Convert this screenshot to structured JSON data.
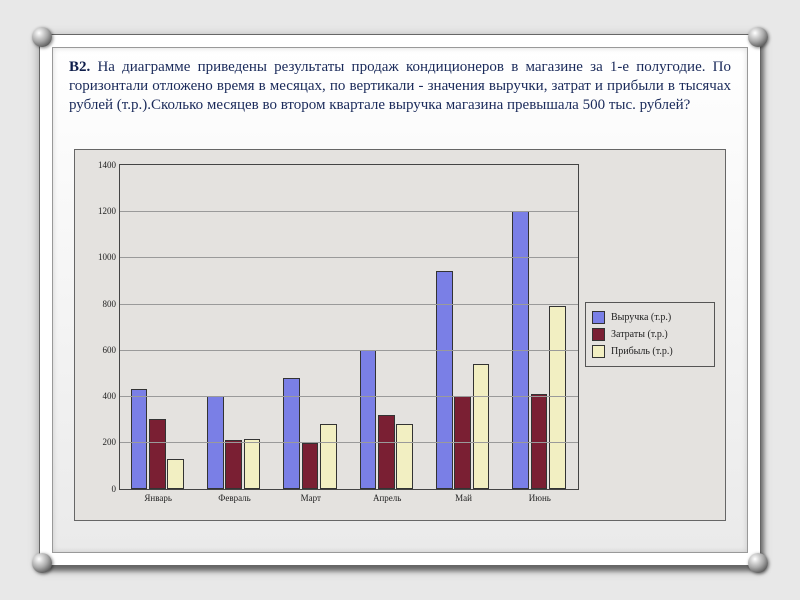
{
  "problem": {
    "label": "В2.",
    "text": "На диаграмме приведены результаты продаж кондиционеров в магазине за 1-е полугодие. По горизонтали отложено время в месяцах, по вертикали - значения выручки, затрат и прибыли в тысячах рублей (т.р.).Сколько месяцев во втором квартале выручка магазина превышала 500 тыс. рублей?"
  },
  "chart": {
    "type": "bar",
    "background_color": "#e4e2df",
    "grid_color": "#9a9a9a",
    "border_color": "#444444",
    "categories": [
      "Январь",
      "Февраль",
      "Март",
      "Апрель",
      "Май",
      "Июнь"
    ],
    "series": [
      {
        "name": "Выручка (т.р.)",
        "color": "#7a7fe6",
        "values": [
          430,
          400,
          480,
          600,
          940,
          1200
        ]
      },
      {
        "name": "Затраты (т.р.)",
        "color": "#7a1f33",
        "values": [
          300,
          210,
          200,
          320,
          400,
          410
        ]
      },
      {
        "name": "Прибыль (т.р.)",
        "color": "#f2efc2",
        "values": [
          130,
          215,
          280,
          280,
          540,
          790
        ]
      }
    ],
    "ylim": [
      0,
      1400
    ],
    "ytick_step": 200,
    "ytick_fontsize": 9,
    "xtick_fontsize": 9,
    "bar_group_width": 0.72,
    "bar_gap": 0.02,
    "legend_position": "right"
  }
}
